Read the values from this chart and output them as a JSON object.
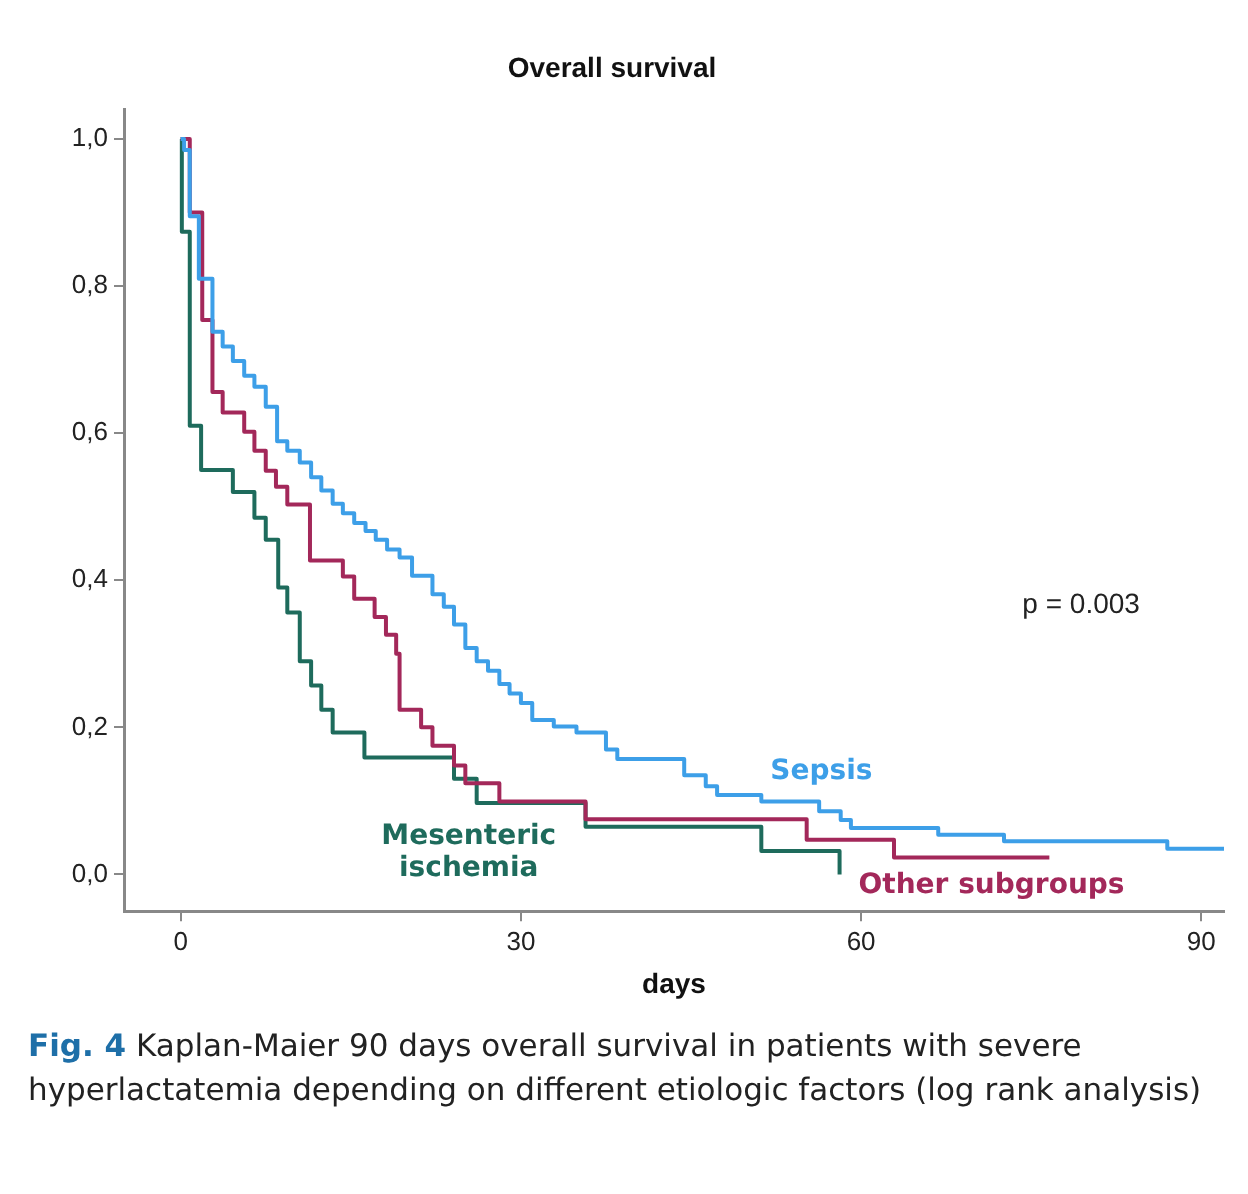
{
  "chart_data": {
    "type": "step",
    "title": "Overall survival",
    "xlabel": "days",
    "xlim": [
      -5,
      92
    ],
    "xticks": [
      0,
      30,
      60,
      90
    ],
    "ylim": [
      -0.05,
      1.04
    ],
    "yticks": [
      {
        "value": 0,
        "label": "0,0"
      },
      {
        "value": 0.2,
        "label": "0,2"
      },
      {
        "value": 0.4,
        "label": "0,4"
      },
      {
        "value": 0.6,
        "label": "0,6"
      },
      {
        "value": 0.8,
        "label": "0,8"
      },
      {
        "value": 1,
        "label": "1,0"
      }
    ],
    "grid": false,
    "legend": false,
    "marker": "none",
    "line_style": "solid",
    "series": [
      {
        "name": "Sepsis",
        "color": "#3d9fe8",
        "x": [
          0,
          0.3,
          0.8,
          1.6,
          2.8,
          3.7,
          4.6,
          5.6,
          6.5,
          7.5,
          8.5,
          9.4,
          10.5,
          11.5,
          12.4,
          13.4,
          14.3,
          15.3,
          16.3,
          17.2,
          18.2,
          19.3,
          20.4,
          22.2,
          23.2,
          24.1,
          25.1,
          26.1,
          27.1,
          28.1,
          29,
          30,
          31,
          32.9,
          34.9,
          37.5,
          38.5,
          44.4,
          46.3,
          47.3,
          51.2,
          56.3,
          58.2,
          59.1,
          66.8,
          72.6,
          87,
          92
        ],
        "values": [
          1,
          0.985,
          0.895,
          0.81,
          0.738,
          0.718,
          0.698,
          0.678,
          0.663,
          0.636,
          0.589,
          0.576,
          0.56,
          0.54,
          0.522,
          0.504,
          0.491,
          0.478,
          0.467,
          0.455,
          0.442,
          0.431,
          0.406,
          0.381,
          0.364,
          0.34,
          0.308,
          0.29,
          0.277,
          0.259,
          0.246,
          0.233,
          0.21,
          0.201,
          0.193,
          0.17,
          0.157,
          0.135,
          0.12,
          0.108,
          0.099,
          0.086,
          0.074,
          0.063,
          0.054,
          0.045,
          0.035,
          0.035
        ]
      },
      {
        "name": "Other subgroups",
        "color": "#a3285a",
        "x": [
          0,
          0.8,
          1.9,
          2.8,
          3.7,
          5.6,
          6.5,
          7.5,
          8.4,
          9.4,
          11.4,
          14.3,
          15.3,
          17.1,
          18.1,
          19.0,
          19.3,
          21.2,
          22.2,
          24.1,
          25.1,
          28.1,
          35.7,
          55.2,
          62.9,
          76.6
        ],
        "values": [
          1,
          0.9,
          0.754,
          0.656,
          0.628,
          0.602,
          0.576,
          0.549,
          0.527,
          0.503,
          0.427,
          0.405,
          0.375,
          0.35,
          0.326,
          0.3,
          0.224,
          0.2,
          0.175,
          0.148,
          0.124,
          0.099,
          0.075,
          0.047,
          0.023,
          0.023
        ]
      },
      {
        "name": "Mesenteric ischemia",
        "color": "#1e6b5c",
        "x": [
          0,
          0.1,
          0.8,
          1.8,
          4.6,
          6.5,
          7.5,
          8.6,
          9.4,
          10.5,
          11.5,
          12.4,
          13.4,
          16.2,
          24.1,
          26.1,
          35.7,
          51.2,
          58.1
        ],
        "values": [
          1,
          0.874,
          0.61,
          0.55,
          0.52,
          0.485,
          0.455,
          0.39,
          0.356,
          0.29,
          0.257,
          0.224,
          0.193,
          0.159,
          0.13,
          0.097,
          0.065,
          0.032,
          0
        ]
      }
    ],
    "annotations": [
      "p = 0.003",
      "Fig. 4  Kaplan-Maier 90 days overall survival in patients with severe hyperlactatemia depending on different etiologic factors (log rank analysis)"
    ]
  }
}
